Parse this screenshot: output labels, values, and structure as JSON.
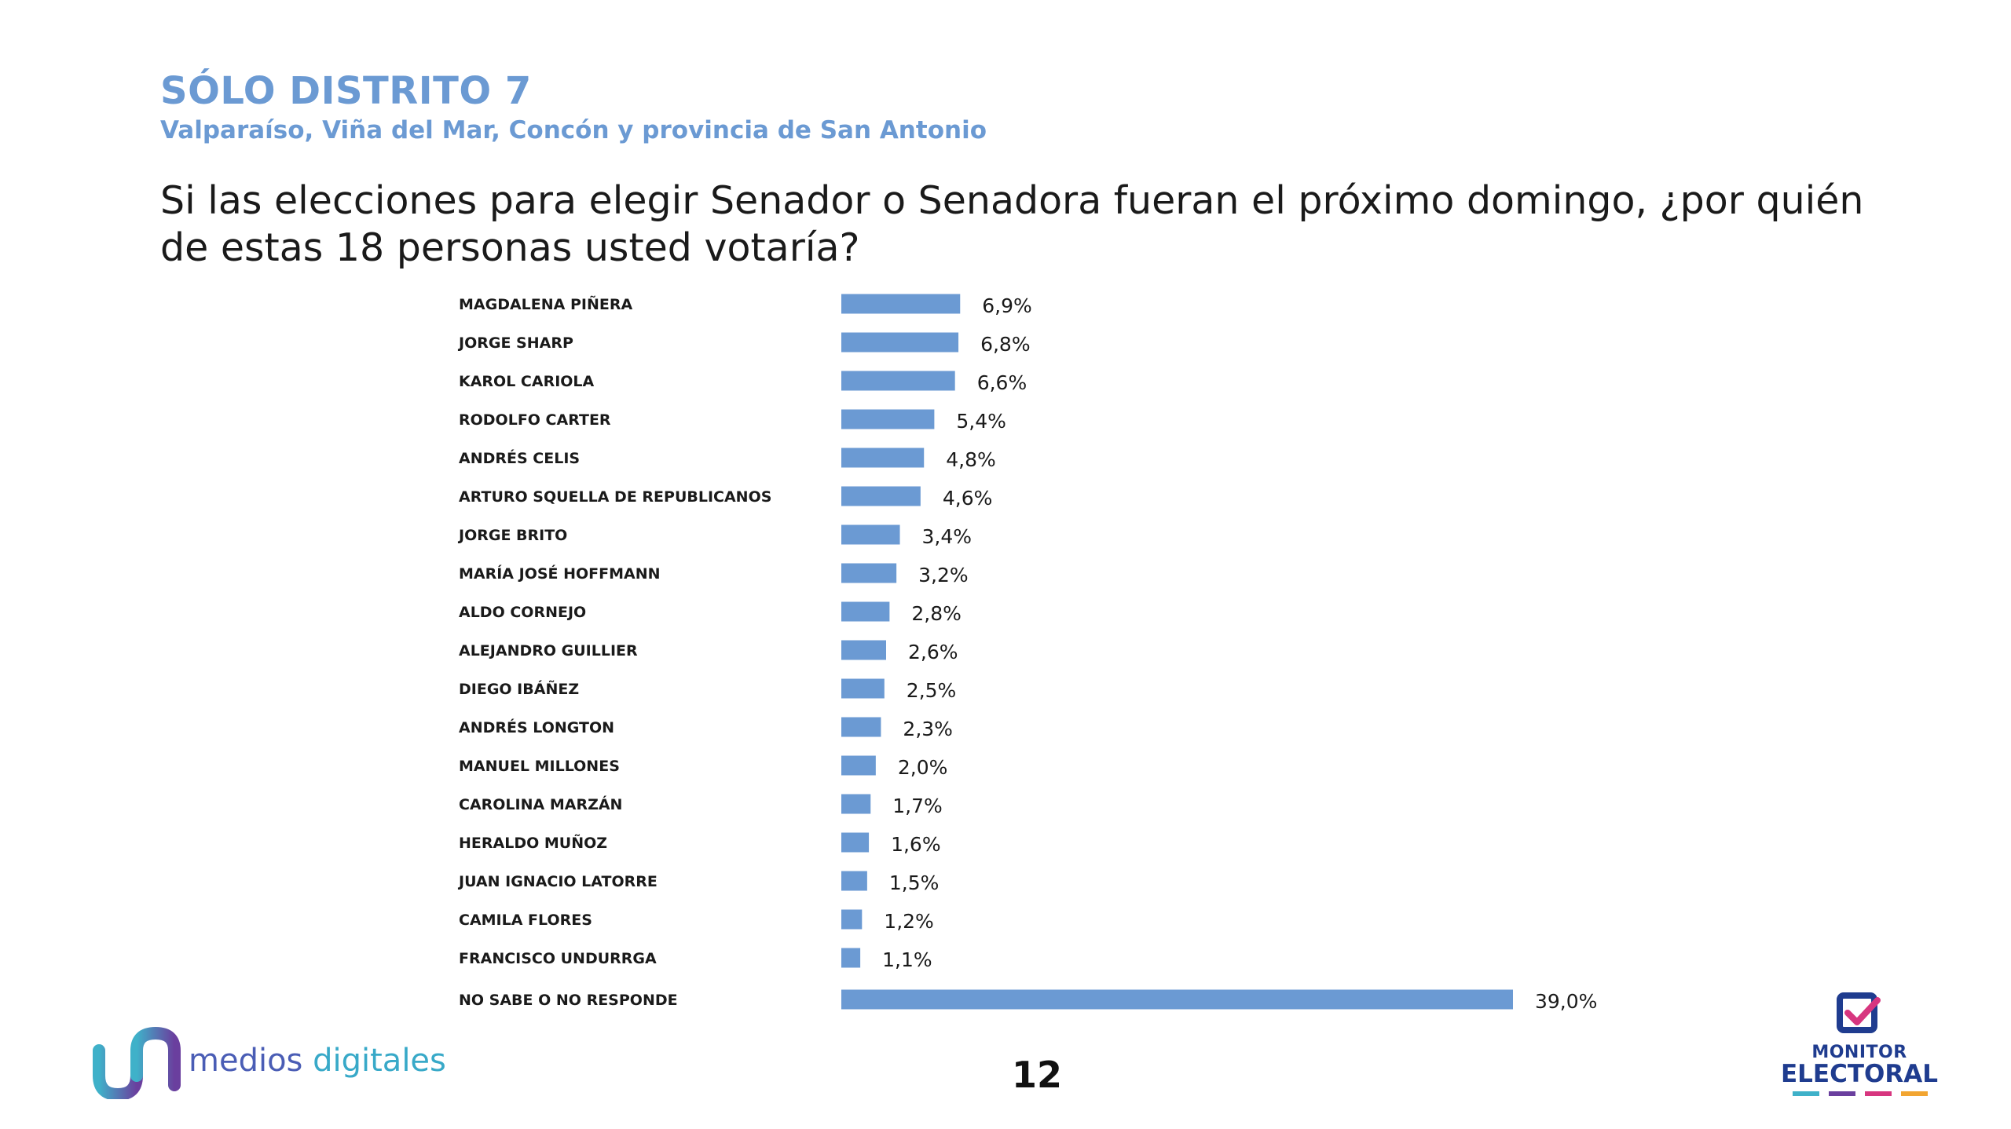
{
  "header": {
    "title": "SÓLO DISTRITO 7",
    "subtitle": "Valparaíso, Viña del Mar, Concón y provincia de San Antonio",
    "question": "Si las elecciones para elegir Senador o Senadora fueran el próximo domingo, ¿por quién de estas 18 personas usted votaría?"
  },
  "chart_data": {
    "type": "bar",
    "orientation": "horizontal",
    "categories": [
      "MAGDALENA PIÑERA",
      "JORGE SHARP",
      "KAROL CARIOLA",
      "RODOLFO CARTER",
      "ANDRÉS CELIS",
      "ARTURO SQUELLA DE REPUBLICANOS",
      "JORGE BRITO",
      "MARÍA JOSÉ HOFFMANN",
      "ALDO CORNEJO",
      "ALEJANDRO GUILLIER",
      "DIEGO IBÁÑEZ",
      "ANDRÉS LONGTON",
      "MANUEL MILLONES",
      "CAROLINA MARZÁN",
      "HERALDO MUÑOZ",
      "JUAN IGNACIO LATORRE",
      "CAMILA FLORES",
      "FRANCISCO UNDURRGA",
      "NO SABE O NO RESPONDE"
    ],
    "values": [
      6.9,
      6.8,
      6.6,
      5.4,
      4.8,
      4.6,
      3.4,
      3.2,
      2.8,
      2.6,
      2.5,
      2.3,
      2.0,
      1.7,
      1.6,
      1.5,
      1.2,
      1.1,
      39.0
    ],
    "value_labels": [
      "6,9%",
      "6,8%",
      "6,6%",
      "5,4%",
      "4,8%",
      "4,6%",
      "3,4%",
      "3,2%",
      "2,8%",
      "2,6%",
      "2,5%",
      "2,3%",
      "2,0%",
      "1,7%",
      "1,6%",
      "1,5%",
      "1,2%",
      "1,1%",
      "39,0%"
    ],
    "xlim": [
      0,
      39
    ],
    "grid": false,
    "legend": "none",
    "bar_color": "#6b9ad3"
  },
  "footer": {
    "brand_main": "medios ",
    "brand_accent": "digitales",
    "page_number": "12",
    "monitor_line1": "MONITOR",
    "monitor_line2": "ELECTORAL"
  }
}
